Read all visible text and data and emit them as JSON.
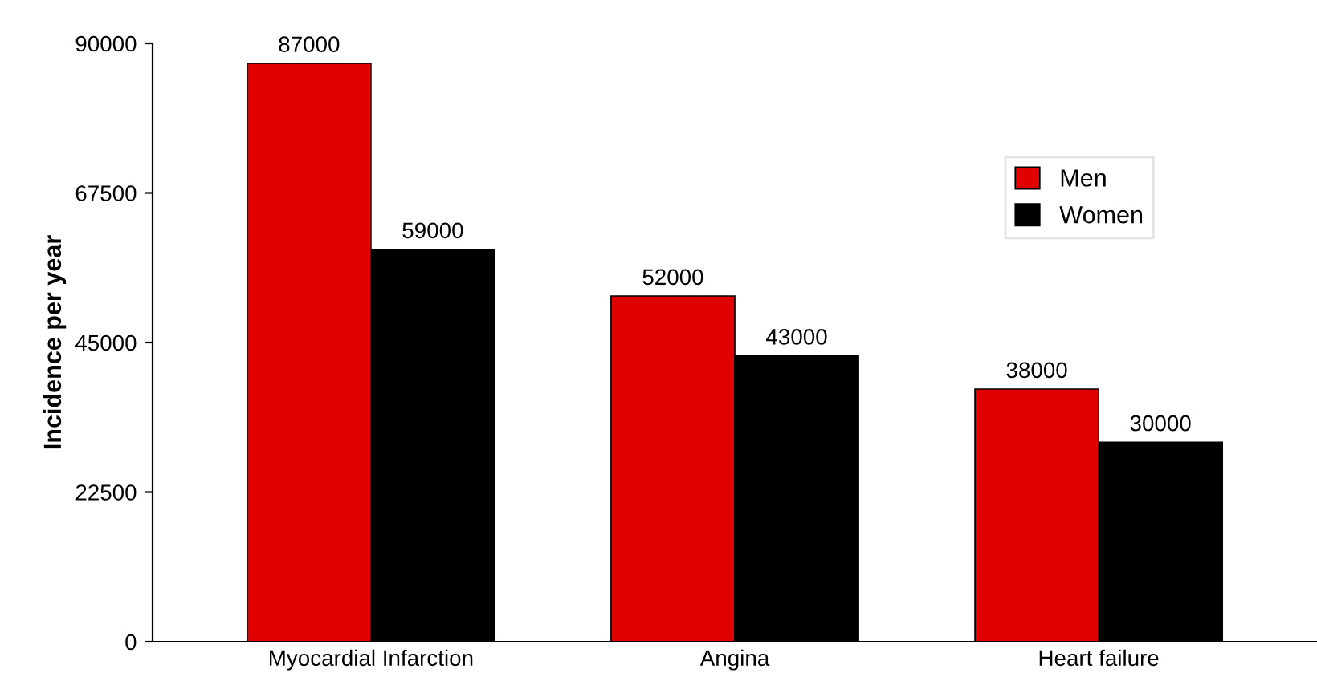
{
  "chart_data": {
    "type": "bar",
    "ylabel": "Incidence per year",
    "categories": [
      "Myocardial Infarction",
      "Angina",
      "Heart failure"
    ],
    "series": [
      {
        "name": "Men",
        "color": "#e00000",
        "values": [
          87000,
          52000,
          38000
        ]
      },
      {
        "name": "Women",
        "color": "#000000",
        "values": [
          59000,
          43000,
          30000
        ]
      }
    ],
    "ylim": [
      0,
      90000
    ],
    "yticks": [
      0,
      22500,
      45000,
      67500,
      90000
    ],
    "grid": false,
    "legend": "top right",
    "data_labels": true
  }
}
